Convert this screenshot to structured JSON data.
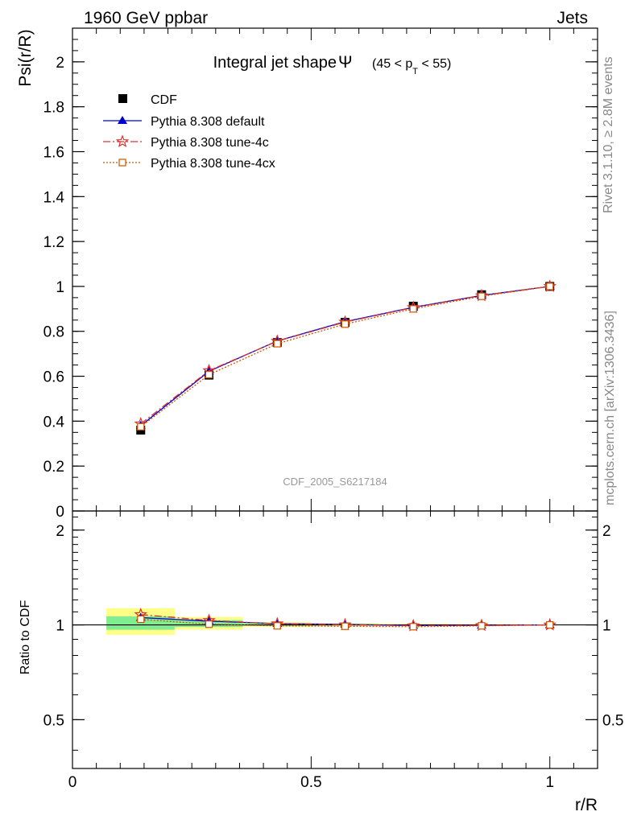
{
  "header": {
    "left_title": "1960 GeV ppbar",
    "right_title": "Jets"
  },
  "side_text": {
    "rivet": "Rivet 3.1.10, ≥ 2.8M events",
    "mcplots": "mcplots.cern.ch [arXiv:1306.3436]"
  },
  "chart_data": [
    {
      "type": "line",
      "title_main": "Integral jet shape",
      "title_symbol": "Ψ",
      "title_range_pre": "(45 < p",
      "title_range_sub": "T",
      "title_range_post": " < 55)",
      "ylabel": "Psi(r/R)",
      "watermark": "CDF_2005_S6217184",
      "xlim": [
        0,
        1.1
      ],
      "ylim": [
        0,
        2.15
      ],
      "yticks": [
        0,
        0.2,
        0.4,
        0.6,
        0.8,
        1,
        1.2,
        1.4,
        1.6,
        1.8,
        2
      ],
      "ytick_labels": [
        "0",
        "0.2",
        "0.4",
        "0.6",
        "0.8",
        "1",
        "1.2",
        "1.4",
        "1.6",
        "1.8",
        "2"
      ],
      "x": [
        0.143,
        0.286,
        0.429,
        0.571,
        0.714,
        0.857,
        1.0
      ],
      "legend_position": "top-left",
      "series": [
        {
          "name": "CDF",
          "type": "data",
          "color": "#000000",
          "marker": "square",
          "values": [
            0.36,
            0.605,
            0.75,
            0.84,
            0.912,
            0.963,
            1.0
          ]
        },
        {
          "name": "Pythia 8.308 default",
          "color": "#0000cc",
          "marker": "triangle",
          "dash": "",
          "values": [
            0.38,
            0.622,
            0.757,
            0.843,
            0.907,
            0.96,
            1.0
          ]
        },
        {
          "name": "Pythia 8.308 tune-4c",
          "color": "#e03030",
          "marker": "star",
          "dash": "9,3,2,3",
          "values": [
            0.388,
            0.625,
            0.756,
            0.841,
            0.906,
            0.959,
            1.0
          ]
        },
        {
          "name": "Pythia 8.308 tune-4cx",
          "color": "#cc5500",
          "marker": "open-square",
          "dash": "2,2",
          "values": [
            0.375,
            0.607,
            0.745,
            0.832,
            0.9,
            0.956,
            1.0
          ]
        }
      ]
    },
    {
      "type": "line",
      "ylabel": "Ratio to CDF",
      "xlabel": "r/R",
      "xlim": [
        0,
        1.1
      ],
      "ylim": [
        0.35,
        2.3
      ],
      "xticks": [
        0,
        0.5,
        1
      ],
      "xtick_labels": [
        "0",
        "0.5",
        "1"
      ],
      "yticks_labeled": [
        0.5,
        1,
        2
      ],
      "ytick_labels": [
        "0.5",
        "1",
        "2"
      ],
      "x": [
        0.143,
        0.286,
        0.429,
        0.571,
        0.714,
        0.857,
        1.0
      ],
      "bands": [
        {
          "x0": 0.071,
          "x1": 0.214,
          "yellow": [
            0.93,
            1.13
          ],
          "green": [
            0.965,
            1.065
          ]
        },
        {
          "x0": 0.214,
          "x1": 0.357,
          "yellow": [
            0.965,
            1.06
          ],
          "green": [
            0.985,
            1.035
          ]
        },
        {
          "x0": 0.357,
          "x1": 0.5,
          "yellow": [
            0.985,
            1.02
          ],
          "green": [
            0.993,
            1.01
          ]
        },
        {
          "x0": 0.5,
          "x1": 0.643,
          "yellow": [
            0.99,
            1.012
          ],
          "green": [
            0.995,
            1.006
          ]
        },
        {
          "x0": 0.643,
          "x1": 0.786,
          "yellow": [
            0.993,
            1.008
          ],
          "green": [
            0.997,
            1.004
          ]
        },
        {
          "x0": 0.786,
          "x1": 0.929,
          "yellow": [
            0.996,
            1.005
          ],
          "green": [
            0.998,
            1.002
          ]
        }
      ],
      "series": [
        {
          "name": "Pythia 8.308 default",
          "color": "#0000cc",
          "marker": "triangle",
          "dash": "",
          "values": [
            1.055,
            1.028,
            1.009,
            1.004,
            0.995,
            0.997,
            1.0
          ]
        },
        {
          "name": "Pythia 8.308 tune-4c",
          "color": "#e03030",
          "marker": "star",
          "dash": "9,3,2,3",
          "values": [
            1.078,
            1.033,
            1.008,
            1.001,
            0.994,
            0.996,
            1.0
          ]
        },
        {
          "name": "Pythia 8.308 tune-4cx",
          "color": "#cc5500",
          "marker": "open-square",
          "dash": "2,2",
          "values": [
            1.042,
            1.005,
            0.993,
            0.99,
            0.987,
            0.993,
            1.0
          ]
        }
      ]
    }
  ]
}
